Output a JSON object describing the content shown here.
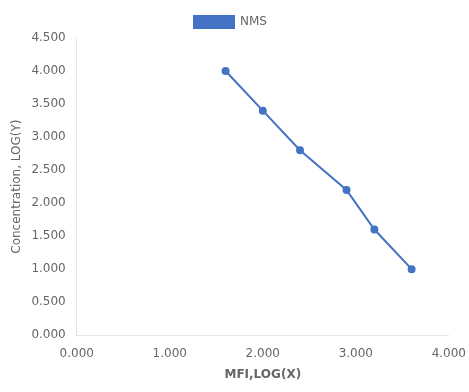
{
  "chart_data": {
    "type": "line",
    "x": [
      1.6,
      2.0,
      2.4,
      2.9,
      3.2,
      3.6
    ],
    "series": [
      {
        "name": "NMS",
        "color": "#4472C4",
        "marker": "circle",
        "line_style": "solid",
        "values": [
          4.0,
          3.4,
          2.8,
          2.2,
          1.6,
          1.0
        ]
      }
    ],
    "xlabel": "MFI,LOG(X)",
    "ylabel": "Concentration, LOG(Y)",
    "xlim": [
      0.0,
      4.0
    ],
    "ylim": [
      0.0,
      4.5
    ],
    "xticks": [
      {
        "value": 0.0,
        "label": "0.000"
      },
      {
        "value": 1.0,
        "label": "1.000"
      },
      {
        "value": 2.0,
        "label": "2.000"
      },
      {
        "value": 3.0,
        "label": "3.000"
      },
      {
        "value": 4.0,
        "label": "4.000"
      }
    ],
    "yticks": [
      {
        "value": 0.0,
        "label": "0.000"
      },
      {
        "value": 0.5,
        "label": "0.500"
      },
      {
        "value": 1.0,
        "label": "1.000"
      },
      {
        "value": 1.5,
        "label": "1.500"
      },
      {
        "value": 2.0,
        "label": "2.000"
      },
      {
        "value": 2.5,
        "label": "2.500"
      },
      {
        "value": 3.0,
        "label": "3.000"
      },
      {
        "value": 3.5,
        "label": "3.500"
      },
      {
        "value": 4.0,
        "label": "4.000"
      },
      {
        "value": 4.5,
        "label": "4.500"
      }
    ],
    "grid": false,
    "legend": "top"
  }
}
